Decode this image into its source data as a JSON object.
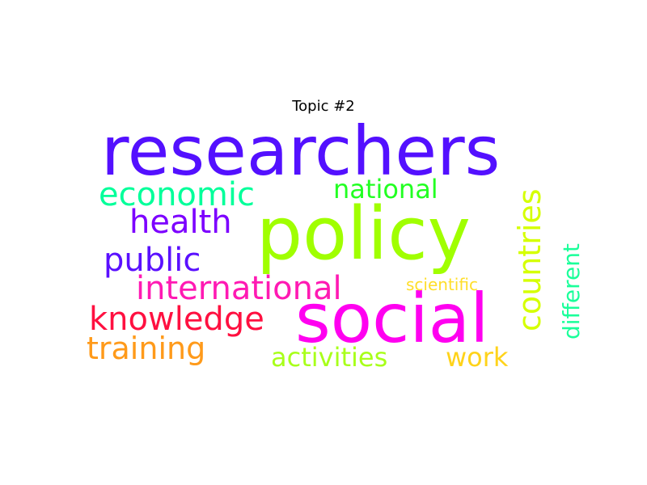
{
  "chart_data": {
    "type": "wordcloud",
    "title": "Topic #2",
    "words": [
      {
        "text": "researchers",
        "color": "#5310ff",
        "orientation": "horizontal"
      },
      {
        "text": "policy",
        "color": "#a0ff00",
        "orientation": "horizontal"
      },
      {
        "text": "social",
        "color": "#ff00f0",
        "orientation": "horizontal"
      },
      {
        "text": "countries",
        "color": "#d5ff00",
        "orientation": "vertical"
      },
      {
        "text": "economic",
        "color": "#00ff9a",
        "orientation": "horizontal"
      },
      {
        "text": "health",
        "color": "#7c00ff",
        "orientation": "horizontal"
      },
      {
        "text": "public",
        "color": "#5a10ff",
        "orientation": "horizontal"
      },
      {
        "text": "international",
        "color": "#ff1ab3",
        "orientation": "horizontal"
      },
      {
        "text": "knowledge",
        "color": "#ff1040",
        "orientation": "horizontal"
      },
      {
        "text": "training",
        "color": "#ff9a1a",
        "orientation": "horizontal"
      },
      {
        "text": "national",
        "color": "#22ff22",
        "orientation": "horizontal"
      },
      {
        "text": "activities",
        "color": "#a8ff1a",
        "orientation": "horizontal"
      },
      {
        "text": "work",
        "color": "#ffd31a",
        "orientation": "horizontal"
      },
      {
        "text": "scientific",
        "color": "#ffde2a",
        "orientation": "horizontal"
      },
      {
        "text": "different",
        "color": "#1aff9a",
        "orientation": "vertical"
      }
    ]
  }
}
